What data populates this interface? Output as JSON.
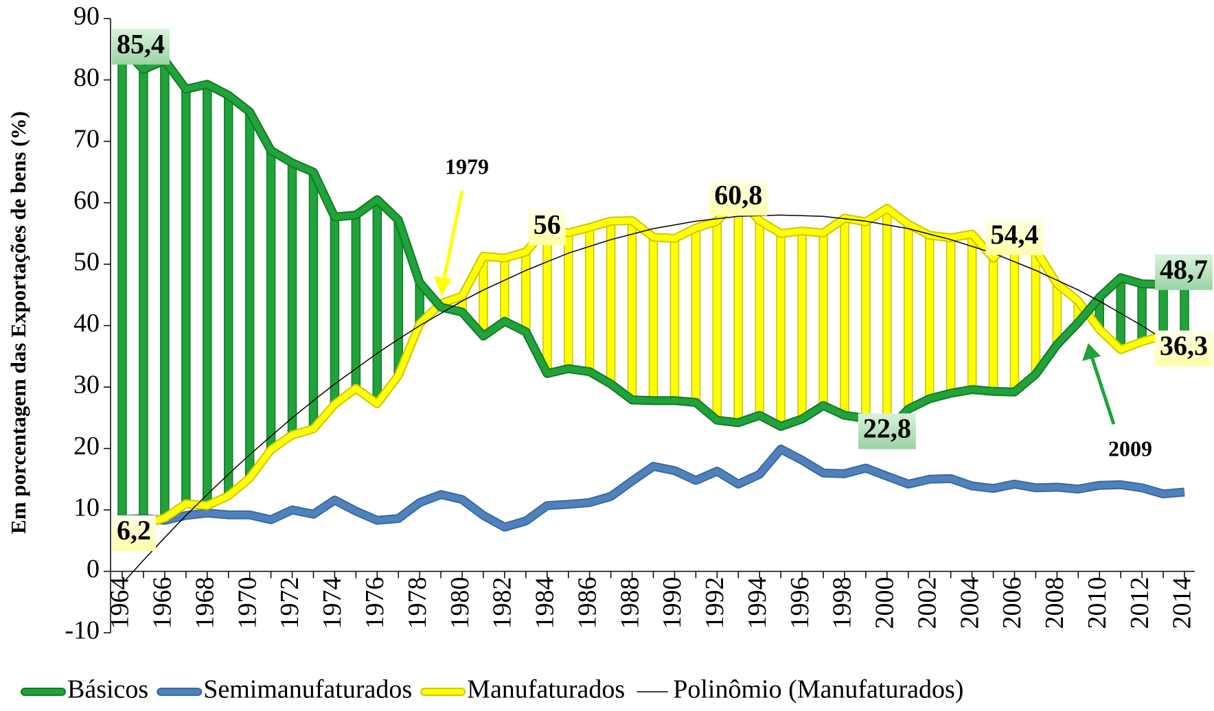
{
  "chart_data": {
    "type": "line",
    "y_axis_label": "Em porcentagem das Exportações de bens (%)",
    "categories": [
      "1964",
      null,
      "1966",
      null,
      "1968",
      null,
      "1970",
      null,
      "1972",
      null,
      "1974",
      null,
      "1976",
      null,
      "1978",
      null,
      "1980",
      null,
      "1982",
      null,
      "1984",
      null,
      "1986",
      null,
      "1988",
      null,
      "1990",
      null,
      "1992",
      null,
      "1994",
      null,
      "1996",
      null,
      "1998",
      null,
      "2000",
      null,
      "2002",
      null,
      "2004",
      null,
      "2006",
      null,
      "2008",
      null,
      "2010",
      null,
      "2012",
      null,
      "2014"
    ],
    "series": [
      {
        "name": "Básicos",
        "color": "#1fa33a",
        "values": [
          85.4,
          81.7,
          83.2,
          78.5,
          79.3,
          77.5,
          74.8,
          68.5,
          66.5,
          65,
          57.7,
          58,
          60.5,
          57.2,
          47,
          43,
          42.2,
          38.3,
          40.7,
          39,
          32.2,
          33,
          32.5,
          30.5,
          27.9,
          27.8,
          27.8,
          27.5,
          24.6,
          24.2,
          25.4,
          23.6,
          24.8,
          27,
          25.4,
          24.9,
          22.8,
          26.4,
          28.1,
          29,
          29.6,
          29.3,
          29.2,
          32.1,
          36.9,
          40.5,
          44.6,
          47.8,
          46.8,
          46.7,
          48.7
        ],
        "value_labels": [
          "85,4",
          null,
          null,
          null,
          null,
          null,
          null,
          null,
          null,
          null,
          null,
          null,
          null,
          null,
          null,
          null,
          null,
          null,
          null,
          null,
          null,
          null,
          null,
          null,
          null,
          null,
          null,
          null,
          null,
          null,
          null,
          null,
          null,
          null,
          null,
          null,
          "22,8",
          null,
          null,
          null,
          null,
          null,
          null,
          null,
          null,
          null,
          null,
          null,
          null,
          null,
          "48,7"
        ]
      },
      {
        "name": "Semimanufaturados",
        "color": "#4f81bd",
        "values": [
          8.4,
          8.6,
          8.3,
          9.1,
          9.5,
          9.2,
          9.2,
          8.4,
          10,
          9.3,
          11.6,
          9.8,
          8.3,
          8.6,
          11.2,
          12.5,
          11.7,
          9.1,
          7.2,
          8.2,
          10.7,
          10.9,
          11.2,
          12.2,
          14.7,
          17.1,
          16.4,
          14.8,
          16.3,
          14.2,
          15.8,
          19.9,
          18.1,
          16,
          15.9,
          16.8,
          15.5,
          14.2,
          15,
          15.1,
          13.9,
          13.5,
          14.2,
          13.6,
          13.7,
          13.4,
          14,
          14.1,
          13.6,
          12.6,
          12.9
        ]
      },
      {
        "name": "Manufaturados",
        "color": "#ffff00",
        "values": [
          6.2,
          7.6,
          8.7,
          11,
          10.7,
          12.3,
          15.2,
          19.8,
          22.2,
          23.2,
          27.2,
          29.8,
          27.3,
          31.9,
          40.3,
          43.6,
          44.8,
          51.3,
          51,
          52,
          56,
          55.1,
          56,
          57,
          57.1,
          54.4,
          54.2,
          55.9,
          57,
          60.8,
          57.1,
          55,
          55.4,
          55.1,
          57.5,
          56.9,
          59.1,
          56.5,
          54.7,
          54.3,
          54.9,
          51,
          54.4,
          52.3,
          46.8,
          44,
          39.4,
          36.1,
          37.4,
          38.4,
          36.3
        ],
        "value_labels": [
          "6,2",
          null,
          null,
          null,
          null,
          null,
          null,
          null,
          null,
          null,
          null,
          null,
          null,
          null,
          null,
          null,
          null,
          null,
          null,
          null,
          "56",
          null,
          null,
          null,
          null,
          null,
          null,
          null,
          null,
          "60,8",
          null,
          null,
          null,
          null,
          null,
          null,
          null,
          null,
          null,
          null,
          null,
          null,
          "54,4",
          null,
          null,
          null,
          null,
          null,
          null,
          null,
          "36,3"
        ]
      },
      {
        "name": "Polinômio (Manufaturados)",
        "color": "#000000",
        "trendline": true,
        "values": [
          -2.0,
          1.8,
          5.5,
          9.1,
          12.5,
          15.8,
          19.0,
          22.0,
          25.0,
          27.8,
          30.5,
          33.0,
          35.5,
          37.8,
          40.0,
          42.0,
          44.0,
          45.8,
          47.4,
          49.0,
          50.4,
          51.8,
          52.9,
          54.0,
          54.9,
          55.8,
          56.4,
          57.0,
          57.4,
          57.8,
          57.9,
          58.0,
          57.9,
          57.8,
          57.4,
          57.0,
          56.4,
          55.8,
          54.9,
          54.0,
          52.9,
          51.8,
          50.4,
          49.0,
          47.4,
          45.8,
          44.0,
          42.0,
          40.0,
          37.8,
          35.5
        ]
      }
    ],
    "high_low_lines": true,
    "annotations": [
      "1979",
      "2009"
    ],
    "ylim": [
      -10,
      90
    ],
    "yticks": [
      -10,
      0,
      10,
      20,
      30,
      40,
      50,
      60,
      70,
      80,
      90
    ],
    "legend": "bottom"
  }
}
